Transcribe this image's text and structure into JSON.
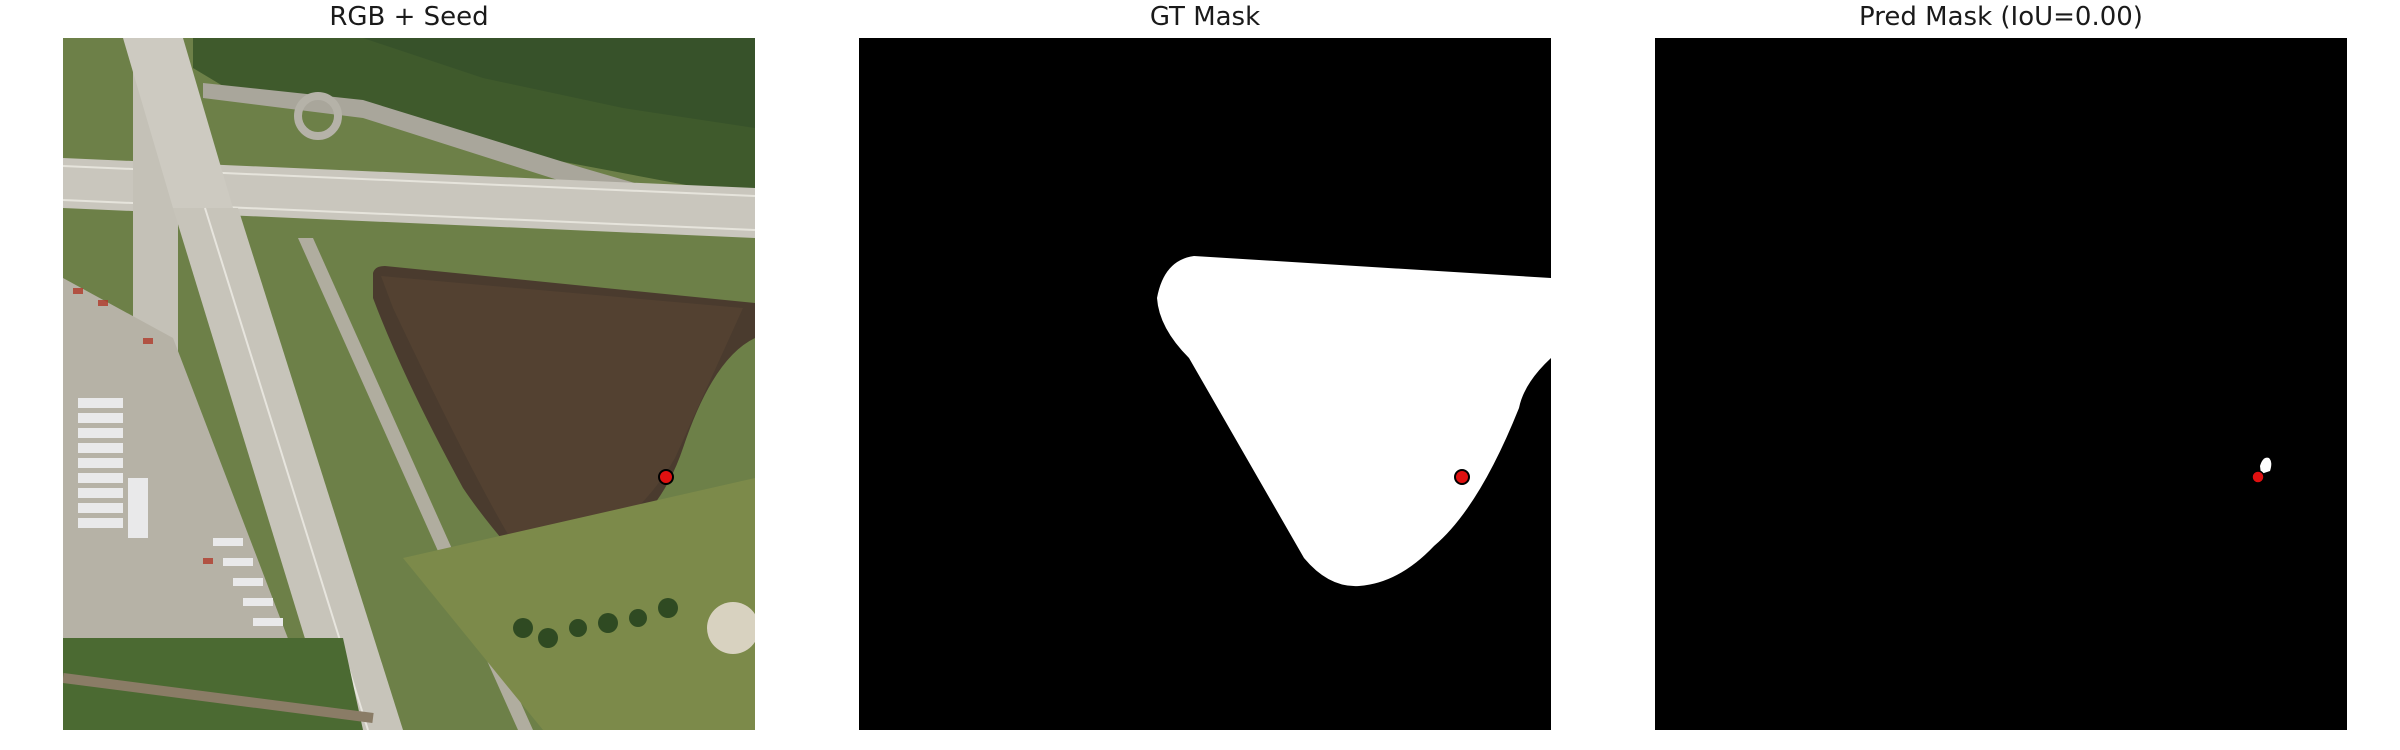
{
  "panels": [
    {
      "title": "RGB + Seed",
      "kind": "aerial-photo"
    },
    {
      "title": "GT Mask",
      "kind": "ground-truth-mask"
    },
    {
      "title": "Pred Mask (IoU=0.00)",
      "kind": "predicted-mask"
    }
  ],
  "seed": {
    "marker_color": "#e01010",
    "outline_color": "#000000"
  },
  "colors": {
    "mask_foreground": "#ffffff",
    "mask_background": "#000000"
  }
}
